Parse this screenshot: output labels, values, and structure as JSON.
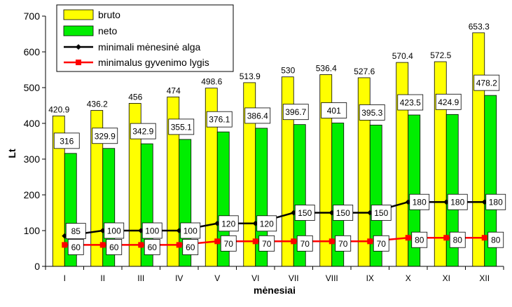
{
  "chart_data": {
    "type": "bar",
    "categories": [
      "I",
      "II",
      "III",
      "IV",
      "V",
      "VI",
      "VII",
      "VIII",
      "IX",
      "X",
      "XI",
      "XII"
    ],
    "series": [
      {
        "name": "bruto",
        "kind": "bar",
        "color": "#ffff00",
        "values": [
          420.9,
          436.2,
          456,
          474,
          498.6,
          513.9,
          530,
          536.4,
          527.6,
          570.4,
          572.5,
          653.3
        ]
      },
      {
        "name": "neto",
        "kind": "bar",
        "color": "#00ee00",
        "values": [
          316,
          329.9,
          342.9,
          355.1,
          376.1,
          386.4,
          396.7,
          401,
          395.3,
          423.5,
          424.9,
          478.2
        ]
      },
      {
        "name": "minimali mėnesinė alga",
        "kind": "line",
        "marker": "diamond",
        "color": "#000000",
        "values": [
          85,
          100,
          100,
          100,
          120,
          120,
          150,
          150,
          150,
          180,
          180,
          180
        ]
      },
      {
        "name": "minimalus gyvenimo lygis",
        "kind": "line",
        "marker": "square",
        "color": "#ff0000",
        "values": [
          60,
          60,
          60,
          60,
          70,
          70,
          70,
          70,
          70,
          80,
          80,
          80
        ]
      }
    ],
    "xlabel": "mėnesiai",
    "ylabel": "Lt",
    "ylim": [
      0,
      700
    ],
    "yticks": [
      0,
      100,
      200,
      300,
      400,
      500,
      600,
      700
    ],
    "grid": false,
    "legend": "top-left"
  }
}
